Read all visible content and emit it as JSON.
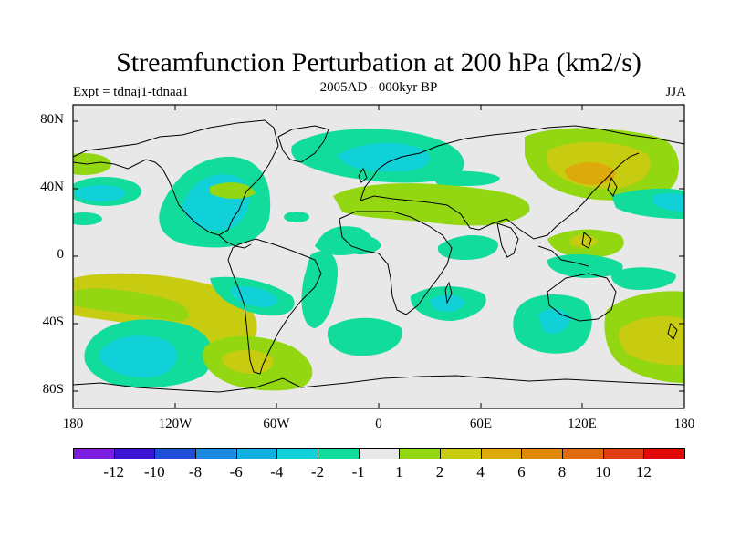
{
  "figure": {
    "title": "Streamfunction Perturbation at 200 hPa (km2/s)",
    "subtitle": "2005AD - 000kyr BP",
    "left_label": "Expt = tdnaj1-tdnaa1",
    "right_label": "JJA",
    "y_ticks": [
      "80N",
      "40N",
      "0",
      "40S",
      "80S"
    ],
    "x_ticks": [
      "180",
      "120W",
      "60W",
      "0",
      "60E",
      "120E",
      "180"
    ]
  },
  "colorbar": {
    "colors": [
      "#7b1ee0",
      "#3b14d6",
      "#1f4fd8",
      "#1b8ae0",
      "#12b0e0",
      "#10d0d8",
      "#12dc9c",
      "#e8e8e8",
      "#93d612",
      "#c8cc10",
      "#dcaa0a",
      "#e08808",
      "#e06a0e",
      "#e03e12",
      "#e00a0a"
    ],
    "labels": [
      "-12",
      "-10",
      "-8",
      "-6",
      "-4",
      "-2",
      "-1",
      "1",
      "2",
      "4",
      "6",
      "8",
      "10",
      "12"
    ]
  },
  "map_colors": {
    "ocean_bg": "#e8e8e8",
    "coast": "#000000"
  }
}
